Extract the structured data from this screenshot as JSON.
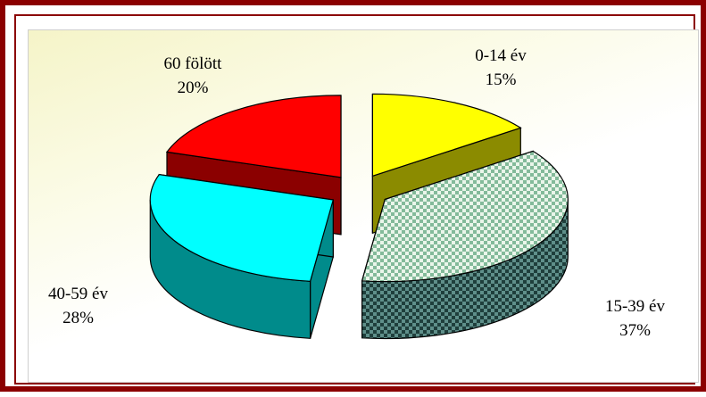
{
  "chart_data": {
    "type": "pie",
    "title": "",
    "style": "3d-exploded",
    "slices": [
      {
        "category": "0-14 év",
        "value": 15,
        "percent_label": "15%",
        "top_color": "#ffff00",
        "side_color": "#8b8b00"
      },
      {
        "category": "15-39 év",
        "value": 37,
        "percent_label": "37%",
        "top_color": "#d8ecd8",
        "side_color": "#3f6b68",
        "pattern": "checkered"
      },
      {
        "category": "40-59 év",
        "value": 28,
        "percent_label": "28%",
        "top_color": "#00ffff",
        "side_color": "#008b8b"
      },
      {
        "category": "60 fölött",
        "value": 20,
        "percent_label": "20%",
        "top_color": "#ff0000",
        "side_color": "#8b0000"
      }
    ]
  }
}
